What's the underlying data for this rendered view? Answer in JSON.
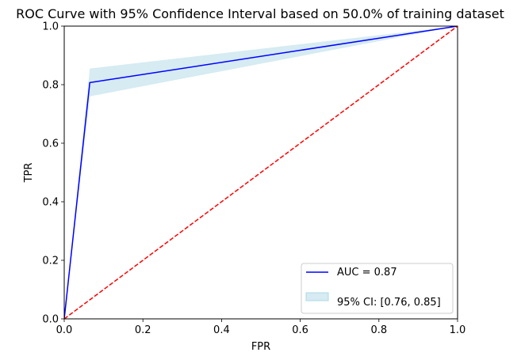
{
  "chart_data": {
    "type": "line",
    "title": "ROC Curve with 95% Confidence Interval based on 50.0% of training dataset",
    "xlabel": "FPR",
    "ylabel": "TPR",
    "xlim": [
      0,
      1
    ],
    "ylim": [
      0,
      1
    ],
    "xticks": [
      "0.0",
      "0.2",
      "0.4",
      "0.6",
      "0.8",
      "1.0"
    ],
    "yticks": [
      "0.0",
      "0.2",
      "0.4",
      "0.6",
      "0.8",
      "1.0"
    ],
    "grid": false,
    "legend_position": "lower right",
    "series": [
      {
        "name": "AUC = 0.87",
        "color": "#0000ff",
        "style": "solid",
        "x": [
          0.0,
          0.065,
          1.0
        ],
        "y": [
          0.0,
          0.807,
          1.0
        ]
      },
      {
        "color": "#ff0000",
        "style": "dashed",
        "x": [
          0.0,
          1.0
        ],
        "y": [
          0.0,
          1.0
        ]
      }
    ],
    "confidence_band": {
      "name": "95% CI: [0.76, 0.85]",
      "color": "#add8e6",
      "x": [
        0.0,
        0.065,
        1.0
      ],
      "lower": [
        0.0,
        0.76,
        1.0
      ],
      "upper": [
        0.0,
        0.855,
        1.0
      ]
    }
  }
}
